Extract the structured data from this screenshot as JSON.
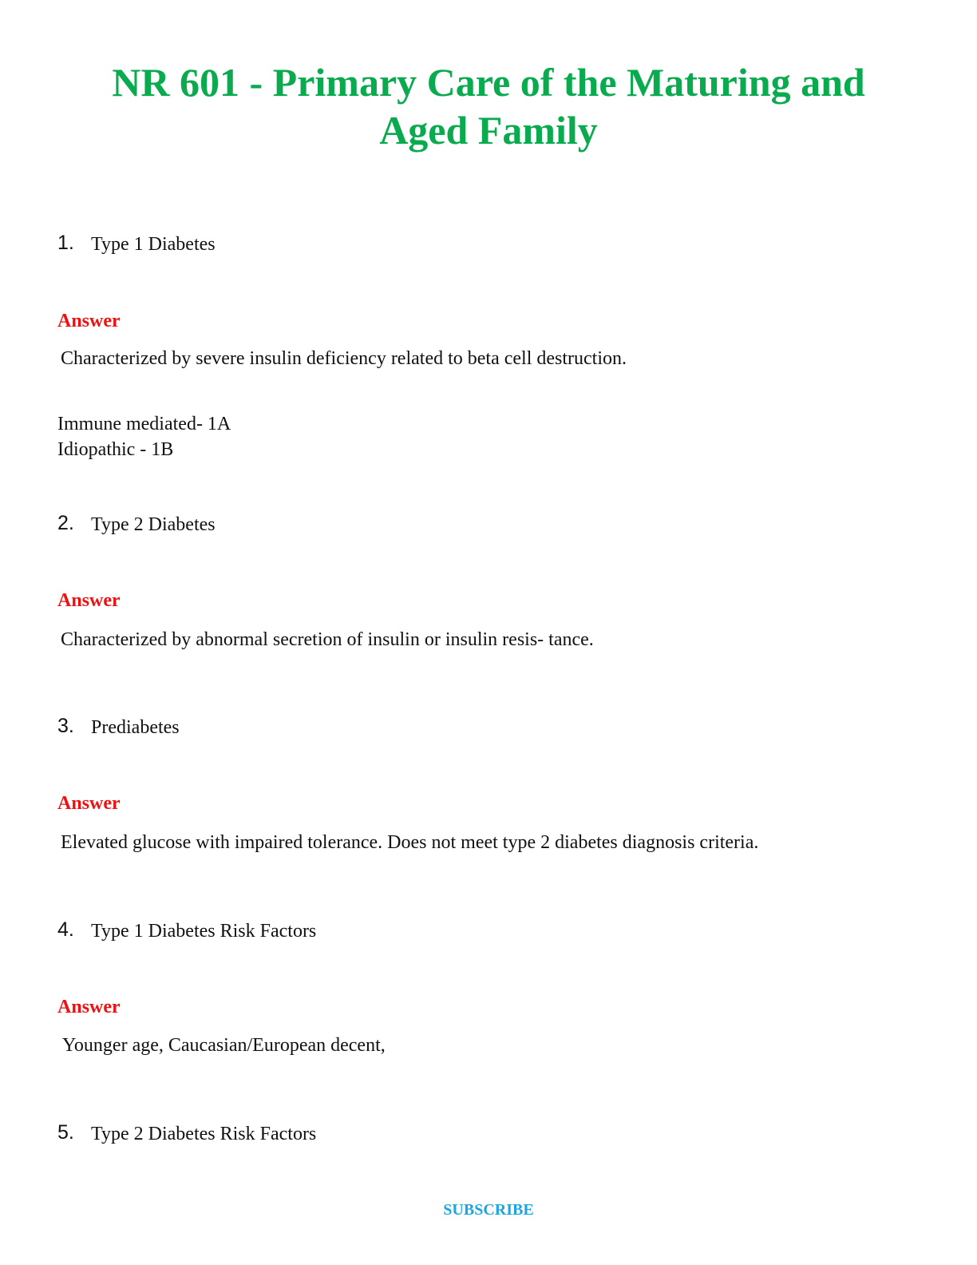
{
  "header": {
    "title": [
      "NR 601 - Primary Care of the Maturing and",
      "Aged Family"
    ]
  },
  "items": [
    {
      "number": "1.",
      "question": "Type 1 Diabetes",
      "answer_label": "Answer",
      "answer": [
        "Characterized by severe insulin deficiency related to beta cell destruction.",
        "Immune mediated- 1A",
        "Idiopathic - 1B"
      ]
    },
    {
      "number": "2.",
      "question": "Type 2 Diabetes",
      "answer_label": "Answer",
      "answer": [
        "Characterized by abnormal secretion of insulin or insulin resis- tance."
      ]
    },
    {
      "number": "3.",
      "question": "Prediabetes",
      "answer_label": "Answer",
      "answer": [
        "Elevated glucose with impaired tolerance. Does not meet type 2 diabetes diagnosis criteria."
      ]
    },
    {
      "number": "4.",
      "question": "Type 1 Diabetes Risk Factors",
      "answer_label": "Answer",
      "answer": [
        "Younger age, Caucasian/European decent,"
      ]
    },
    {
      "number": "5.",
      "question": "Type 2 Diabetes Risk Factors"
    }
  ],
  "footer": {
    "link": "SUBSCRIBE"
  }
}
